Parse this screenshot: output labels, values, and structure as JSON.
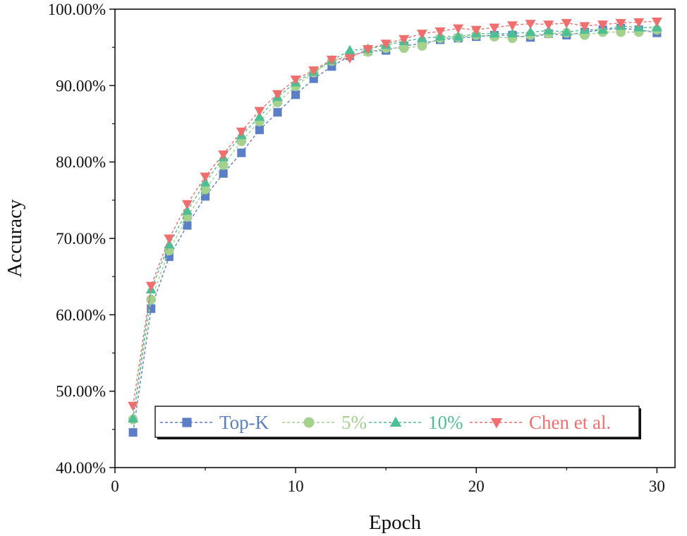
{
  "chart_data": {
    "type": "line",
    "title": "",
    "xlabel": "Epoch",
    "ylabel": "Accuracy",
    "xlim": [
      0,
      31
    ],
    "ylim": [
      40,
      100
    ],
    "xticks": [
      0,
      10,
      20,
      30
    ],
    "xtick_labels": [
      "0",
      "10",
      "20",
      "30"
    ],
    "yticks": [
      40,
      50,
      60,
      70,
      80,
      90,
      100
    ],
    "ytick_labels": [
      "40.00%",
      "50.00%",
      "60.00%",
      "70.00%",
      "80.00%",
      "90.00%",
      "100.00%"
    ],
    "grid": false,
    "legend_position": "bottom",
    "x": [
      1,
      2,
      3,
      4,
      5,
      6,
      7,
      8,
      9,
      10,
      11,
      12,
      13,
      14,
      15,
      16,
      17,
      18,
      19,
      20,
      21,
      22,
      23,
      24,
      25,
      26,
      27,
      28,
      29,
      30
    ],
    "series": [
      {
        "name": "Top-K",
        "color": "#5b7fc7",
        "marker": "square",
        "values": [
          44.6,
          60.8,
          67.6,
          71.7,
          75.5,
          78.5,
          81.2,
          84.2,
          86.5,
          88.8,
          90.9,
          92.5,
          93.9,
          94.5,
          94.6,
          95.2,
          95.5,
          96.0,
          96.2,
          96.4,
          96.6,
          96.6,
          96.3,
          96.8,
          96.6,
          97.0,
          97.3,
          97.5,
          97.3,
          96.9
        ]
      },
      {
        "name": "5%",
        "color": "#a5d18f",
        "marker": "circle",
        "values": [
          46.3,
          62.0,
          68.4,
          72.8,
          76.4,
          79.6,
          82.7,
          85.3,
          87.8,
          89.9,
          91.7,
          93.2,
          94.0,
          94.4,
          94.9,
          94.9,
          95.2,
          96.2,
          96.3,
          96.6,
          96.4,
          96.2,
          96.6,
          96.8,
          96.9,
          96.6,
          97.0,
          97.0,
          97.0,
          97.3
        ]
      },
      {
        "name": "10%",
        "color": "#4dbf94",
        "marker": "triangle-up",
        "values": [
          46.4,
          63.3,
          69.2,
          73.6,
          77.3,
          80.6,
          83.5,
          85.9,
          88.5,
          90.4,
          91.8,
          93.3,
          94.6,
          94.8,
          95.3,
          95.8,
          96.2,
          96.4,
          96.4,
          96.8,
          96.8,
          96.8,
          97.0,
          97.2,
          97.0,
          97.3,
          97.3,
          97.8,
          97.6,
          97.6
        ]
      },
      {
        "name": "Chen et al.",
        "color": "#ef6f6f",
        "marker": "triangle-down",
        "values": [
          48.1,
          63.8,
          70.0,
          74.5,
          78.1,
          81.0,
          84.0,
          86.7,
          88.9,
          90.8,
          92.0,
          93.4,
          93.6,
          94.8,
          95.5,
          96.1,
          96.8,
          97.1,
          97.5,
          97.3,
          97.6,
          97.9,
          98.1,
          98.0,
          98.2,
          97.8,
          98.0,
          98.2,
          98.3,
          98.4
        ]
      }
    ]
  }
}
